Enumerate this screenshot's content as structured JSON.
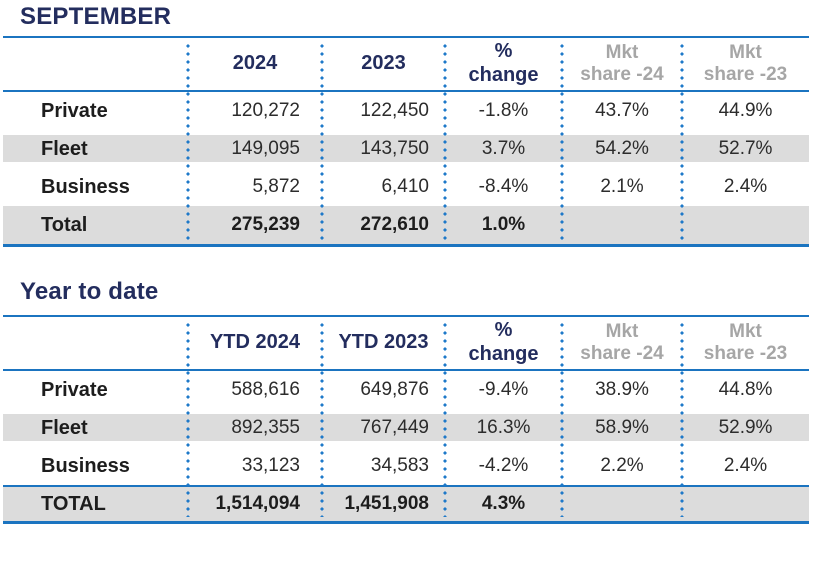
{
  "colors": {
    "navy": "#232d5e",
    "blue": "#1b74c0",
    "dot": "#1e79c9",
    "stripe": "#dcdcdc",
    "grayhead": "#a6a6a6"
  },
  "tables": [
    {
      "title": "SEPTEMBER",
      "headers": [
        {
          "line1": "",
          "line2": ""
        },
        {
          "line1": "2024",
          "line2": ""
        },
        {
          "line1": "2023",
          "line2": ""
        },
        {
          "line1": "%",
          "line2": "change"
        },
        {
          "line1": "Mkt",
          "line2": "share -24"
        },
        {
          "line1": "Mkt",
          "line2": "share -23"
        }
      ],
      "rows": [
        {
          "label": "Private",
          "cells": [
            "120,272",
            "122,450",
            "-1.8%",
            "43.7%",
            "44.9%"
          ]
        },
        {
          "label": "Fleet",
          "cells": [
            "149,095",
            "143,750",
            "3.7%",
            "54.2%",
            "52.7%"
          ]
        },
        {
          "label": "Business",
          "cells": [
            "5,872",
            "6,410",
            "-8.4%",
            "2.1%",
            "2.4%"
          ]
        },
        {
          "label": "Total",
          "cells": [
            "275,239",
            "272,610",
            "1.0%",
            "",
            ""
          ]
        }
      ]
    },
    {
      "title": "Year to date",
      "headers": [
        {
          "line1": "",
          "line2": ""
        },
        {
          "line1": "YTD 2024",
          "line2": ""
        },
        {
          "line1": "YTD 2023",
          "line2": ""
        },
        {
          "line1": "%",
          "line2": "change"
        },
        {
          "line1": "Mkt",
          "line2": "share -24"
        },
        {
          "line1": "Mkt",
          "line2": "share -23"
        }
      ],
      "rows": [
        {
          "label": "Private",
          "cells": [
            "588,616",
            "649,876",
            "-9.4%",
            "38.9%",
            "44.8%"
          ]
        },
        {
          "label": "Fleet",
          "cells": [
            "892,355",
            "767,449",
            "16.3%",
            "58.9%",
            "52.9%"
          ]
        },
        {
          "label": "Business",
          "cells": [
            "33,123",
            "34,583",
            "-4.2%",
            "2.2%",
            "2.4%"
          ]
        },
        {
          "label": "TOTAL",
          "cells": [
            "1,514,094",
            "1,451,908",
            "4.3%",
            "",
            ""
          ]
        }
      ]
    }
  ]
}
